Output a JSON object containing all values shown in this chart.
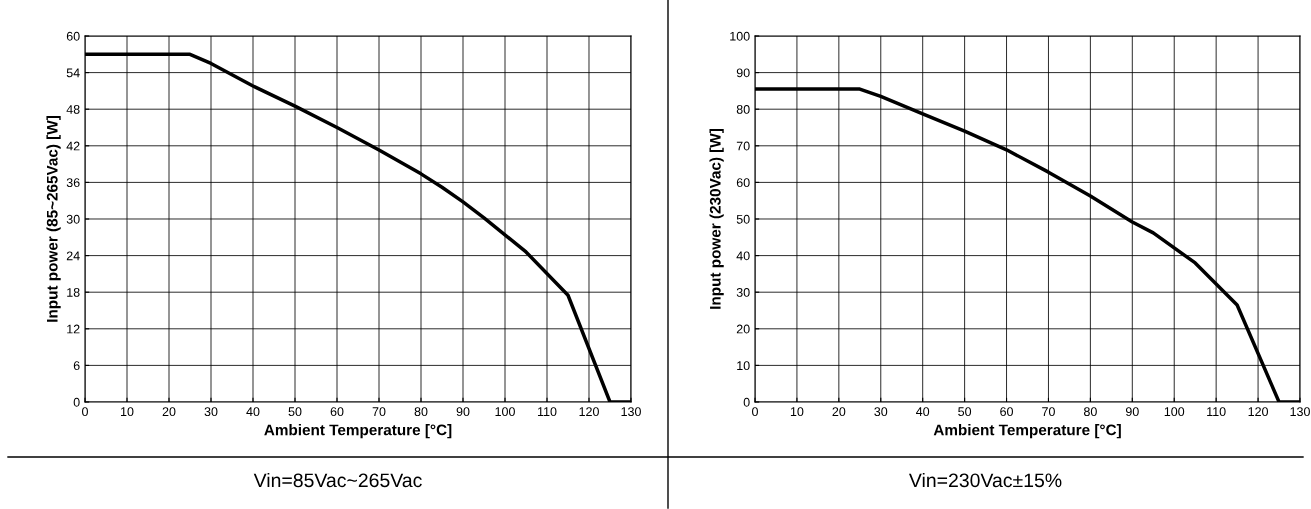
{
  "chart_data": [
    {
      "type": "line",
      "xlabel": "Ambient Temperature [°C]",
      "ylabel": "Input power (85~265Vac) [W]",
      "annotations": [
        "Vin=85Vac~265Vac"
      ],
      "x": [
        0,
        25,
        30,
        40,
        50,
        60,
        70,
        80,
        85,
        90,
        95,
        105,
        115,
        125,
        130
      ],
      "series": [
        {
          "color": "#000000",
          "values": [
            57,
            57,
            55.5,
            51.8,
            48.5,
            45,
            41.3,
            37.4,
            35.2,
            32.8,
            30.2,
            24.6,
            17.5,
            0,
            0
          ]
        }
      ],
      "xlim": [
        0,
        130
      ],
      "xticks": [
        0,
        10,
        20,
        30,
        40,
        50,
        60,
        70,
        80,
        90,
        100,
        110,
        120,
        130
      ],
      "ylim": [
        0,
        60
      ],
      "yticks": [
        0,
        6,
        12,
        18,
        24,
        30,
        36,
        42,
        48,
        54,
        60
      ],
      "grid": true
    },
    {
      "type": "line",
      "xlabel": "Ambient Temperature [°C]",
      "ylabel": "Input power (230Vac) [W]",
      "annotations": [
        "Vin=230Vac±15%"
      ],
      "x": [
        0,
        25,
        30,
        40,
        50,
        60,
        70,
        80,
        90,
        95,
        105,
        115,
        125,
        130
      ],
      "series": [
        {
          "color": "#000000",
          "values": [
            85.5,
            85.5,
            83.5,
            78.7,
            74,
            68.9,
            62.8,
            56.3,
            49.2,
            46.2,
            38,
            26.5,
            0,
            0
          ]
        }
      ],
      "xlim": [
        0,
        130
      ],
      "xticks": [
        0,
        10,
        20,
        30,
        40,
        50,
        60,
        70,
        80,
        90,
        100,
        110,
        120,
        130
      ],
      "ylim": [
        0,
        100
      ],
      "yticks": [
        0,
        10,
        20,
        30,
        40,
        50,
        60,
        70,
        80,
        90,
        100
      ],
      "grid": true
    }
  ]
}
